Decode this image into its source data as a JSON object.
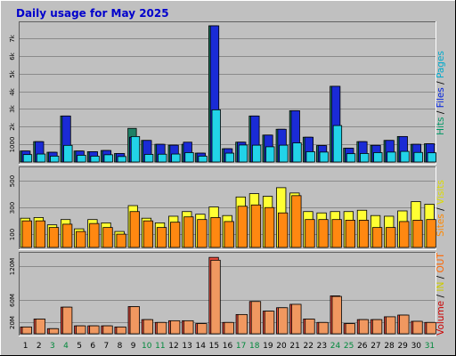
{
  "chart_data": {
    "type": "bar",
    "title": "Daily usage for May 2025",
    "categories": [
      "1",
      "2",
      "3",
      "4",
      "5",
      "6",
      "7",
      "8",
      "9",
      "10",
      "11",
      "12",
      "13",
      "14",
      "15",
      "16",
      "17",
      "18",
      "19",
      "20",
      "21",
      "22",
      "23",
      "24",
      "25",
      "26",
      "27",
      "28",
      "29",
      "30",
      "31"
    ],
    "weekend_days": [
      "3",
      "4",
      "10",
      "11",
      "17",
      "18",
      "24",
      "25",
      "31"
    ],
    "panels": [
      {
        "name": "hits",
        "axis_label_parts": [
          {
            "text": "Hits",
            "color": "#009966"
          },
          {
            "text": " / ",
            "color": "#000000"
          },
          {
            "text": "Files",
            "color": "#0022dd"
          },
          {
            "text": " / ",
            "color": "#000000"
          },
          {
            "text": "Pages",
            "color": "#00aacc"
          }
        ],
        "yticks": [
          1000,
          2000,
          3000,
          4000,
          5000,
          6000,
          7000
        ],
        "ytick_labels": [
          "1000",
          "2k",
          "3k",
          "4k",
          "5k",
          "6k",
          "7k"
        ],
        "ylim": [
          0,
          7800
        ],
        "series": [
          {
            "name": "Hits",
            "color": "#1f8066",
            "values": [
              620,
              1150,
              550,
              2600,
              620,
              580,
              650,
              480,
              1900,
              1220,
              1000,
              950,
              1000,
              500,
              7700,
              750,
              1120,
              2600,
              1520,
              1850,
              2900,
              1400,
              930,
              4280,
              780,
              1150,
              940,
              1220,
              1440,
              1000,
              1030
            ]
          },
          {
            "name": "Files",
            "color": "#1a2bd6",
            "values": [
              620,
              1150,
              550,
              2600,
              620,
              580,
              650,
              480,
              1400,
              1220,
              1000,
              950,
              1120,
              500,
              7700,
              750,
              1120,
              2600,
              1520,
              1850,
              2900,
              1400,
              930,
              4280,
              780,
              1150,
              940,
              1220,
              1440,
              1000,
              1030
            ]
          },
          {
            "name": "Pages",
            "color": "#22d3e8",
            "values": [
              420,
              450,
              330,
              940,
              380,
              330,
              410,
              310,
              1440,
              430,
              440,
              450,
              530,
              330,
              2950,
              500,
              960,
              950,
              860,
              950,
              1080,
              580,
              560,
              2060,
              470,
              480,
              530,
              560,
              600,
              540,
              520
            ]
          }
        ]
      },
      {
        "name": "visits",
        "axis_label_parts": [
          {
            "text": "Sites",
            "color": "#ff8800"
          },
          {
            "text": " / ",
            "color": "#000000"
          },
          {
            "text": "Visits",
            "color": "#dddd00"
          }
        ],
        "yticks": [
          100,
          300,
          500
        ],
        "ytick_labels": [
          "100",
          "300",
          "500"
        ],
        "ylim": [
          0,
          590
        ],
        "series": [
          {
            "name": "Visits",
            "color": "#ffff33",
            "values": [
              220,
              225,
              170,
              210,
              140,
              210,
              185,
              120,
              315,
              220,
              185,
              235,
              270,
              250,
              305,
              240,
              380,
              405,
              385,
              450,
              410,
              270,
              260,
              270,
              270,
              280,
              240,
              235,
              275,
              345,
              325
            ]
          },
          {
            "name": "Sites",
            "color": "#ff8811",
            "values": [
              200,
              200,
              150,
              175,
              120,
              180,
              150,
              100,
              270,
              200,
              150,
              190,
              230,
              210,
              225,
              195,
              310,
              320,
              300,
              260,
              390,
              210,
              210,
              210,
              205,
              205,
              150,
              150,
              195,
              205,
              210
            ]
          }
        ]
      },
      {
        "name": "volume",
        "axis_label_parts": [
          {
            "text": "Volume",
            "color": "#cc0000"
          },
          {
            "text": " / ",
            "color": "#000000"
          },
          {
            "text": "IN",
            "color": "#cccc00"
          },
          {
            "text": " / ",
            "color": "#000000"
          },
          {
            "text": "OUT",
            "color": "#ff6600"
          }
        ],
        "yticks": [
          20,
          60,
          120
        ],
        "ytick_labels": [
          "20M",
          "60M",
          "120M"
        ],
        "ylim": [
          0,
          140
        ],
        "series": [
          {
            "name": "Volume",
            "color": "#e64a3a",
            "values": [
              12,
              26,
              9,
              47,
              14,
              14,
              14,
              12,
              48,
              25,
              20,
              23,
              23,
              18,
              135,
              20,
              34,
              57,
              40,
              46,
              52,
              26,
              20,
              67,
              18,
              25,
              25,
              30,
              33,
              22,
              20
            ]
          },
          {
            "name": "OUT",
            "color": "#f09860",
            "values": [
              12,
              26,
              9,
              47,
              14,
              14,
              14,
              12,
              48,
              25,
              20,
              23,
              23,
              18,
              130,
              20,
              34,
              57,
              40,
              46,
              52,
              26,
              20,
              66,
              18,
              25,
              25,
              30,
              33,
              22,
              20
            ]
          }
        ]
      }
    ]
  }
}
